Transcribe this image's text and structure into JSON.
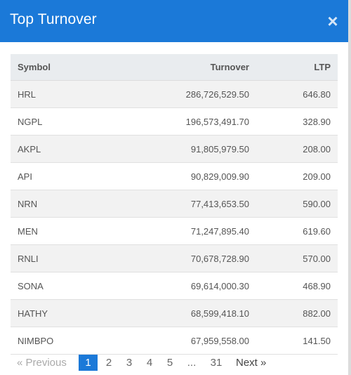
{
  "header": {
    "title": "Top Turnover",
    "close_glyph": "×"
  },
  "table": {
    "columns": {
      "symbol": "Symbol",
      "turnover": "Turnover",
      "ltp": "LTP"
    },
    "rows": [
      {
        "symbol": "HRL",
        "turnover": "286,726,529.50",
        "ltp": "646.80"
      },
      {
        "symbol": "NGPL",
        "turnover": "196,573,491.70",
        "ltp": "328.90"
      },
      {
        "symbol": "AKPL",
        "turnover": "91,805,979.50",
        "ltp": "208.00"
      },
      {
        "symbol": "API",
        "turnover": "90,829,009.90",
        "ltp": "209.00"
      },
      {
        "symbol": "NRN",
        "turnover": "77,413,653.50",
        "ltp": "590.00"
      },
      {
        "symbol": "MEN",
        "turnover": "71,247,895.40",
        "ltp": "619.60"
      },
      {
        "symbol": "RNLI",
        "turnover": "70,678,728.90",
        "ltp": "570.00"
      },
      {
        "symbol": "SONA",
        "turnover": "69,614,000.30",
        "ltp": "468.90"
      },
      {
        "symbol": "HATHY",
        "turnover": "68,599,418.10",
        "ltp": "882.00"
      },
      {
        "symbol": "NIMBPO",
        "turnover": "67,959,558.00",
        "ltp": "141.50"
      }
    ]
  },
  "pagination": {
    "previous": "« Previous",
    "pages": [
      "1",
      "2",
      "3",
      "4",
      "5"
    ],
    "ellipsis": "...",
    "last": "31",
    "next": "Next »",
    "active_page": "1"
  },
  "colors": {
    "header": "#1b79d8",
    "active_page": "#1b79d8",
    "striped_row": "#f2f2f2",
    "table_head": "#e9ecef"
  }
}
